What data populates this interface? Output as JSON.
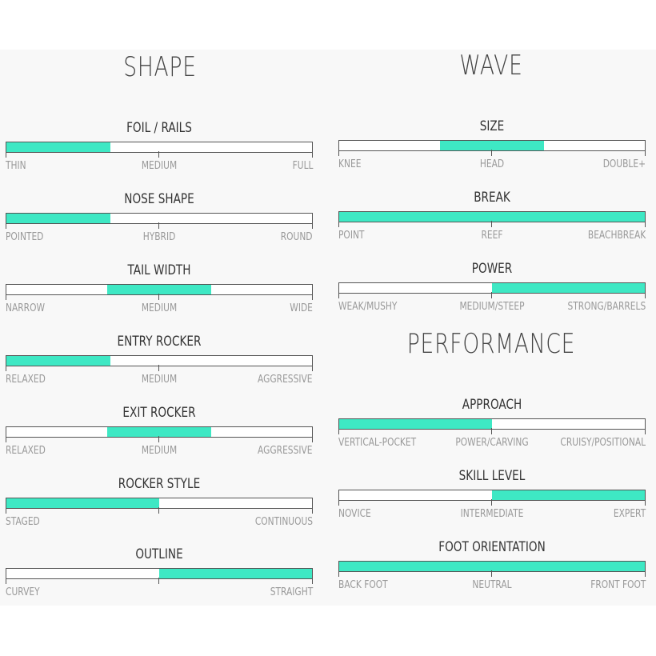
{
  "accent_color": "#3ee8c4",
  "sections": [
    {
      "title": "SHAPE",
      "items": [
        {
          "title": "FOIL / RAILS",
          "labels": [
            "THIN",
            "MEDIUM",
            "FULL"
          ],
          "fill": [
            0,
            0.34
          ]
        },
        {
          "title": "NOSE SHAPE",
          "labels": [
            "POINTED",
            "HYBRID",
            "ROUND"
          ],
          "fill": [
            0,
            0.34
          ]
        },
        {
          "title": "TAIL WIDTH",
          "labels": [
            "NARROW",
            "MEDIUM",
            "WIDE"
          ],
          "fill": [
            0.33,
            0.67
          ]
        },
        {
          "title": "ENTRY ROCKER",
          "labels": [
            "RELAXED",
            "MEDIUM",
            "AGGRESSIVE"
          ],
          "fill": [
            0,
            0.34
          ]
        },
        {
          "title": "EXIT ROCKER",
          "labels": [
            "RELAXED",
            "MEDIUM",
            "AGGRESSIVE"
          ],
          "fill": [
            0.33,
            0.67
          ]
        },
        {
          "title": "ROCKER STYLE",
          "labels": [
            "STAGED",
            "",
            "CONTINUOUS"
          ],
          "fill": [
            0,
            0.5
          ]
        },
        {
          "title": "OUTLINE",
          "labels": [
            "CURVEY",
            "",
            "STRAIGHT"
          ],
          "fill": [
            0.5,
            1
          ]
        }
      ]
    },
    {
      "title": "WAVE",
      "items": [
        {
          "title": "SIZE",
          "labels": [
            "KNEE",
            "HEAD",
            "DOUBLE+"
          ],
          "fill": [
            0.33,
            0.67
          ]
        },
        {
          "title": "BREAK",
          "labels": [
            "POINT",
            "REEF",
            "BEACHBREAK"
          ],
          "fill": [
            0,
            1
          ]
        },
        {
          "title": "POWER",
          "labels": [
            "WEAK/MUSHY",
            "MEDIUM/STEEP",
            "STRONG/BARRELS"
          ],
          "fill": [
            0.5,
            1
          ]
        }
      ]
    },
    {
      "title": "PERFORMANCE",
      "items": [
        {
          "title": "APPROACH",
          "labels": [
            "VERTICAL-POCKET",
            "POWER/CARVING",
            "CRUISY/POSITIONAL"
          ],
          "fill": [
            0,
            0.5
          ]
        },
        {
          "title": "SKILL LEVEL",
          "labels": [
            "NOVICE",
            "INTERMEDIATE",
            "EXPERT"
          ],
          "fill": [
            0.5,
            1
          ]
        },
        {
          "title": "FOOT ORIENTATION",
          "labels": [
            "BACK FOOT",
            "NEUTRAL",
            "FRONT FOOT"
          ],
          "fill": [
            0,
            1
          ]
        }
      ]
    }
  ]
}
